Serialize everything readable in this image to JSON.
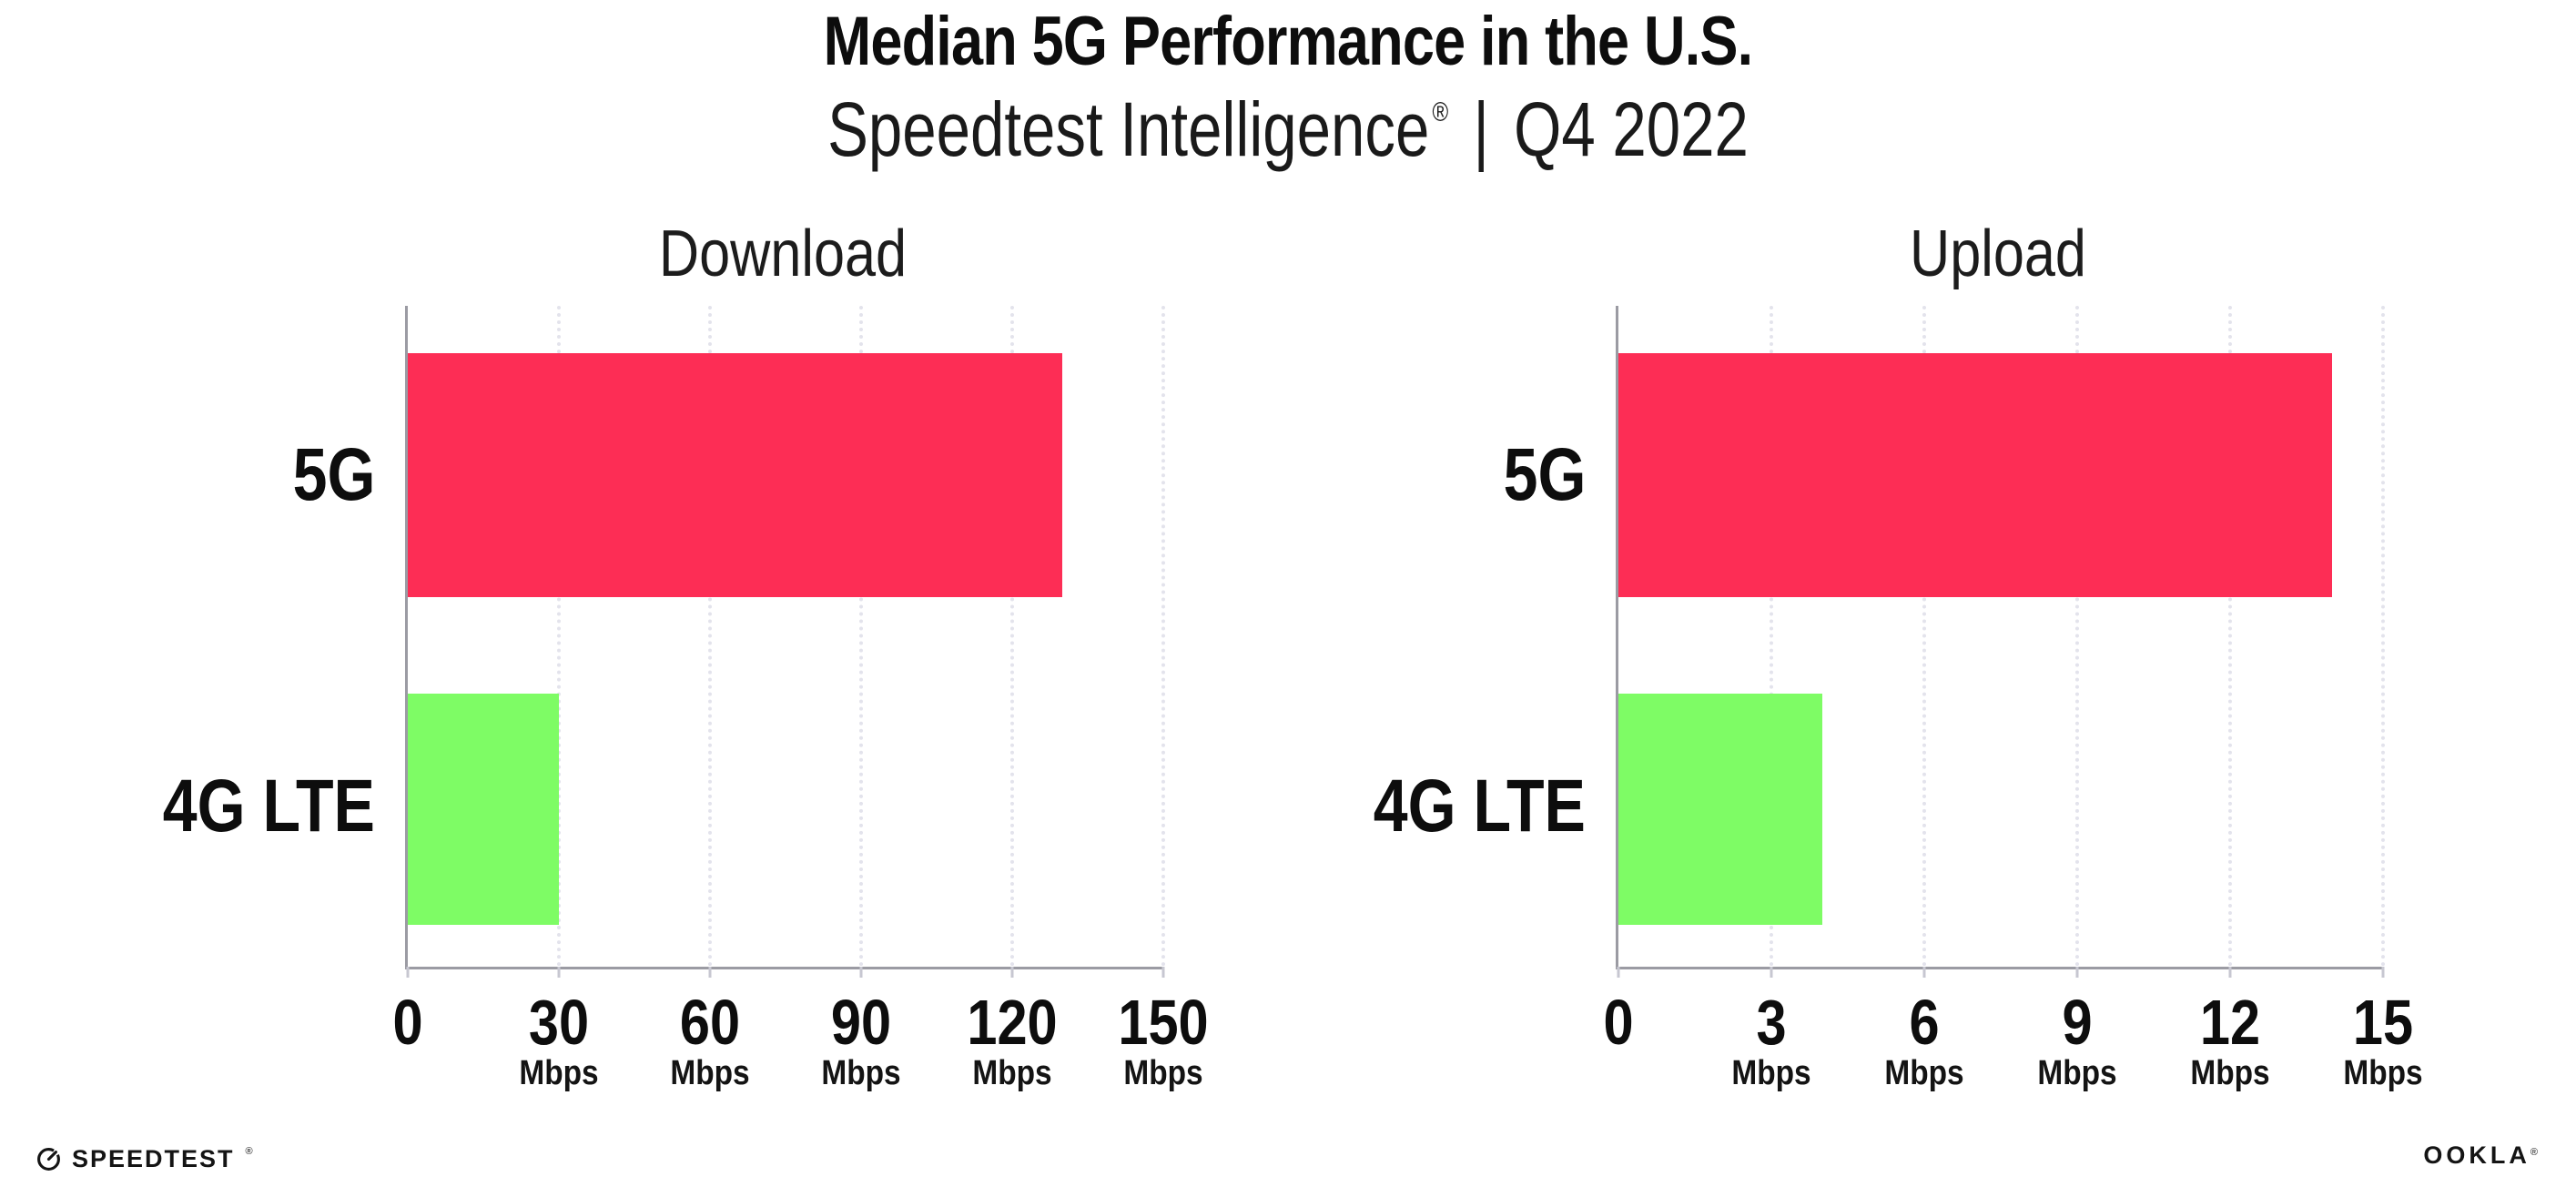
{
  "page": {
    "title": "Median 5G Performance in the U.S.",
    "subtitle_brand": "Speedtest Intelligence",
    "subtitle_registered": "®",
    "subtitle_separator": "|",
    "subtitle_period": "Q4 2022"
  },
  "chart_data": [
    {
      "type": "bar",
      "orientation": "horizontal",
      "title": "Download",
      "categories": [
        "5G",
        "4G LTE"
      ],
      "values": [
        130,
        30
      ],
      "unit": "Mbps",
      "xlim": [
        0,
        150
      ],
      "xticks": [
        0,
        30,
        60,
        90,
        120,
        150
      ],
      "xtick_unit": "Mbps",
      "grid": "vertical-dotted",
      "legend": "none",
      "bar_color_keys": [
        "bar_5g",
        "bar_4g_lte"
      ]
    },
    {
      "type": "bar",
      "orientation": "horizontal",
      "title": "Upload",
      "categories": [
        "5G",
        "4G LTE"
      ],
      "values": [
        14,
        4
      ],
      "unit": "Mbps",
      "xlim": [
        0,
        15
      ],
      "xticks": [
        0,
        3,
        6,
        9,
        12,
        15
      ],
      "xtick_unit": "Mbps",
      "grid": "vertical-dotted",
      "legend": "none",
      "bar_color_keys": [
        "bar_5g",
        "bar_4g_lte"
      ]
    }
  ],
  "colors": {
    "bar_5g": "#FD2D55",
    "bar_4g_lte": "#7EFC65",
    "axis": "#9B9BA3",
    "gridline": "#E3E3EC",
    "tick_mark": "#C7C7D1",
    "text": "#111111"
  },
  "footer": {
    "speedtest_label": "SPEEDTEST",
    "speedtest_mark": "®",
    "ookla_label": "OOKLA",
    "ookla_mark": "®"
  }
}
